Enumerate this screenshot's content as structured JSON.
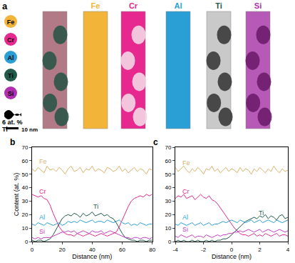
{
  "image_panel": {
    "label": "a",
    "elements": [
      {
        "name": "Fe",
        "color": "#f2b53a"
      },
      {
        "name": "Cr",
        "color": "#e6288f"
      },
      {
        "name": "Al",
        "color": "#2a9fd6"
      },
      {
        "name": "Ti",
        "color": "#1f5a4a"
      },
      {
        "name": "Si",
        "color": "#b02fb0"
      }
    ],
    "isosurface_label": [
      "6 at. %",
      "Ti"
    ],
    "scale_bar": "10 nm"
  },
  "chart_data": [
    {
      "type": "line",
      "title": "b",
      "x_label": "Distance (nm)",
      "y_label": "Content (at. %)",
      "x": [
        0,
        2,
        4,
        6,
        8,
        10,
        12,
        14,
        16,
        18,
        20,
        22,
        24,
        26,
        28,
        30,
        32,
        34,
        36,
        38,
        40,
        42,
        44,
        46,
        48,
        50,
        52,
        54,
        56,
        58,
        60,
        62,
        64,
        66,
        68,
        70,
        72,
        74,
        76,
        78,
        80
      ],
      "xlim": [
        0,
        80
      ],
      "xticks": [
        0,
        20,
        40,
        60,
        80
      ],
      "ylim": [
        0,
        70
      ],
      "yticks": [
        0,
        10,
        20,
        30,
        40,
        50,
        60,
        70
      ],
      "grid": false,
      "series": [
        {
          "name": "Fe",
          "color": "#d9b36c",
          "values": [
            54,
            52,
            55,
            53,
            51,
            56,
            53,
            54,
            52,
            55,
            53,
            50,
            54,
            56,
            52,
            53,
            55,
            51,
            54,
            53,
            56,
            52,
            54,
            53,
            51,
            55,
            54,
            52,
            53,
            56,
            52,
            54,
            51,
            53,
            55,
            52,
            54,
            53,
            50,
            54,
            53
          ]
        },
        {
          "name": "Cr",
          "color": "#e6288f",
          "values": [
            35,
            34,
            33,
            34,
            32,
            31,
            27,
            21,
            16,
            11,
            8,
            6,
            5,
            5,
            4,
            6,
            5,
            4,
            5,
            6,
            5,
            4,
            5,
            6,
            5,
            4,
            5,
            6,
            7,
            11,
            16,
            21,
            26,
            30,
            32,
            33,
            34,
            33,
            35,
            34,
            35
          ]
        },
        {
          "name": "Al",
          "color": "#2a9fd6",
          "values": [
            13,
            12,
            14,
            13,
            12,
            14,
            13,
            12,
            13,
            14,
            12,
            13,
            15,
            14,
            15,
            14,
            16,
            15,
            14,
            15,
            16,
            14,
            15,
            15,
            14,
            16,
            15,
            14,
            15,
            16,
            14,
            13,
            14,
            12,
            13,
            12,
            14,
            13,
            12,
            13,
            13
          ]
        },
        {
          "name": "Ti",
          "color": "#1f5a4a",
          "values": [
            1,
            0,
            1,
            1,
            0,
            1,
            2,
            5,
            9,
            13,
            17,
            19,
            20,
            19,
            21,
            20,
            18,
            21,
            19,
            20,
            22,
            19,
            20,
            21,
            19,
            20,
            18,
            17,
            14,
            10,
            6,
            3,
            2,
            1,
            1,
            0,
            1,
            1,
            0,
            1,
            1
          ]
        },
        {
          "name": "Si",
          "color": "#c03fc0",
          "values": [
            3,
            2,
            3,
            2,
            3,
            3,
            3,
            4,
            5,
            6,
            7,
            7,
            8,
            7,
            8,
            6,
            7,
            8,
            7,
            6,
            8,
            7,
            7,
            8,
            6,
            7,
            8,
            7,
            6,
            5,
            4,
            3,
            3,
            2,
            3,
            3,
            2,
            3,
            3,
            2,
            3
          ]
        }
      ]
    },
    {
      "type": "line",
      "title": "c",
      "x_label": "Distance (nm)",
      "x": [
        -4,
        -3.8,
        -3.6,
        -3.4,
        -3.2,
        -3,
        -2.8,
        -2.6,
        -2.4,
        -2.2,
        -2,
        -1.8,
        -1.6,
        -1.4,
        -1.2,
        -1,
        -0.8,
        -0.6,
        -0.4,
        -0.2,
        0,
        0.2,
        0.4,
        0.6,
        0.8,
        1,
        1.2,
        1.4,
        1.6,
        1.8,
        2,
        2.2,
        2.4,
        2.6,
        2.8,
        3,
        3.2,
        3.4,
        3.6,
        3.8,
        4
      ],
      "xlim": [
        -4,
        4
      ],
      "xticks": [
        -4,
        -2,
        0,
        2,
        4
      ],
      "ylim": [
        0,
        70
      ],
      "yticks": [
        0,
        10,
        20,
        30,
        40,
        50,
        60,
        70
      ],
      "grid": false,
      "series": [
        {
          "name": "Fe",
          "color": "#d9b36c",
          "values": [
            55,
            52,
            54,
            56,
            53,
            51,
            54,
            52,
            55,
            53,
            50,
            54,
            53,
            56,
            52,
            54,
            51,
            53,
            55,
            52,
            54,
            53,
            51,
            55,
            52,
            54,
            53,
            50,
            54,
            52,
            55,
            53,
            51,
            54,
            52,
            56,
            53,
            51,
            54,
            52,
            53
          ]
        },
        {
          "name": "Cr",
          "color": "#e6288f",
          "values": [
            32,
            34,
            33,
            35,
            32,
            33,
            34,
            31,
            33,
            35,
            33,
            32,
            34,
            31,
            30,
            28,
            25,
            22,
            19,
            16,
            13,
            10,
            8,
            6,
            5,
            5,
            4,
            5,
            6,
            4,
            5,
            4,
            6,
            5,
            4,
            5,
            6,
            4,
            5,
            5,
            4
          ]
        },
        {
          "name": "Al",
          "color": "#2a9fd6",
          "values": [
            13,
            12,
            14,
            13,
            12,
            13,
            14,
            12,
            13,
            14,
            12,
            13,
            14,
            12,
            13,
            13,
            14,
            15,
            14,
            15,
            16,
            15,
            14,
            16,
            15,
            14,
            15,
            16,
            14,
            15,
            16,
            14,
            15,
            16,
            15,
            14,
            16,
            15,
            14,
            15,
            16
          ]
        },
        {
          "name": "Ti",
          "color": "#1f5a4a",
          "values": [
            0,
            1,
            0,
            1,
            0,
            0,
            1,
            0,
            1,
            0,
            0,
            1,
            0,
            1,
            0,
            1,
            1,
            2,
            2,
            3,
            5,
            7,
            9,
            11,
            13,
            15,
            16,
            17,
            18,
            17,
            19,
            18,
            20,
            17,
            19,
            18,
            16,
            19,
            20,
            17,
            18
          ]
        },
        {
          "name": "Si",
          "color": "#c03fc0",
          "values": [
            4,
            3,
            5,
            4,
            3,
            4,
            5,
            3,
            4,
            4,
            3,
            5,
            4,
            3,
            4,
            5,
            4,
            5,
            5,
            6,
            6,
            7,
            7,
            8,
            7,
            8,
            9,
            8,
            7,
            8,
            9,
            7,
            8,
            9,
            8,
            7,
            8,
            9,
            8,
            7,
            8
          ]
        }
      ]
    }
  ]
}
